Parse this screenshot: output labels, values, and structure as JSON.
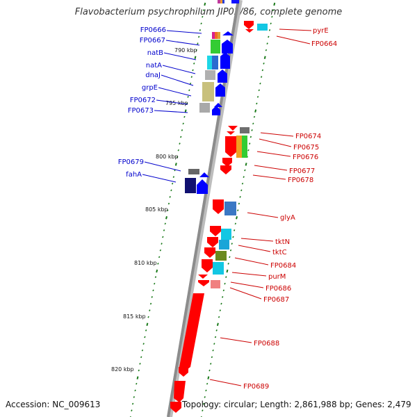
{
  "title": "Flavobacterium psychrophilum JIP02/86, complete genome",
  "footer": {
    "accession": "Accession: NC_009613",
    "topology": "Topology: circular; Length: 2,861,988 bp; Genes: 2,479"
  },
  "colors": {
    "forward_label": "#0000cc",
    "reverse_label": "#cc0000",
    "forward_arrow": "#0000ff",
    "reverse_arrow": "#ff0000",
    "tick": "#1a7a1a"
  },
  "scale": {
    "labels": [
      "790 kbp",
      "795 kbp",
      "800 kbp",
      "805 kbp",
      "810 kbp",
      "815 kbp",
      "820 kbp"
    ]
  },
  "forward_genes": [
    {
      "label": "FP0666"
    },
    {
      "label": "FP0667"
    },
    {
      "label": "natB"
    },
    {
      "label": "natA"
    },
    {
      "label": "dnaJ"
    },
    {
      "label": "grpE"
    },
    {
      "label": "FP0672"
    },
    {
      "label": "FP0673"
    },
    {
      "label": "FP0679"
    },
    {
      "label": "fahA"
    }
  ],
  "reverse_genes": [
    {
      "label": "pyrE"
    },
    {
      "label": "FP0664"
    },
    {
      "label": "FP0674"
    },
    {
      "label": "FP0675"
    },
    {
      "label": "FP0676"
    },
    {
      "label": "FP0677"
    },
    {
      "label": "FP0678"
    },
    {
      "label": "glyA"
    },
    {
      "label": "tktN"
    },
    {
      "label": "tktC"
    },
    {
      "label": "FP0684"
    },
    {
      "label": "purM"
    },
    {
      "label": "FP0686"
    },
    {
      "label": "FP0687"
    },
    {
      "label": "FP0688"
    },
    {
      "label": "FP0689"
    }
  ]
}
